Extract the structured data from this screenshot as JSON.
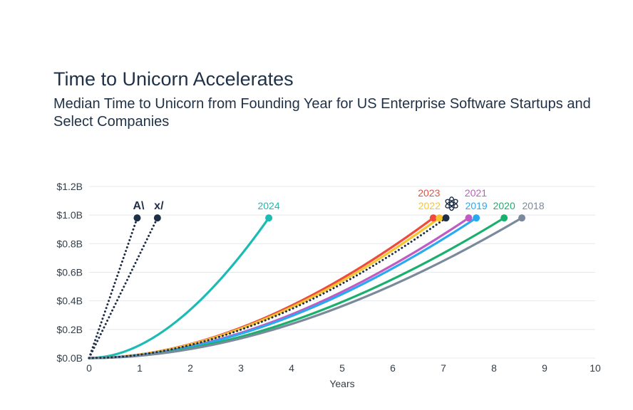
{
  "title": "Time to Unicorn Accelerates",
  "subtitle": "Median Time to Unicorn from Founding Year for US Enterprise Software Startups and Select Companies",
  "chart_data": {
    "type": "line",
    "title": "Time to Unicorn Accelerates",
    "subtitle": "Median Time to Unicorn from Founding Year for US Enterprise Software Startups and Select Companies",
    "xlabel": "Years",
    "ylabel": "",
    "xlim": [
      0,
      10
    ],
    "ylim": [
      0,
      1.2
    ],
    "xticks": [
      "0",
      "1",
      "2",
      "3",
      "4",
      "5",
      "6",
      "7",
      "8",
      "9",
      "10"
    ],
    "yticks": [
      "$0.0B",
      "$0.2B",
      "$0.4B",
      "$0.6B",
      "$0.8B",
      "$1.0B",
      "$1.2B"
    ],
    "grid": "horizontal",
    "series": [
      {
        "name": "Anthropic",
        "label": "A\\",
        "kind": "company",
        "end_year": 0.95,
        "end_value": 0.98,
        "color": "#1f2f47",
        "style": "dotted",
        "curve": "concave"
      },
      {
        "name": "xAI",
        "label": "x/",
        "kind": "company",
        "end_year": 1.35,
        "end_value": 0.98,
        "color": "#1f2f47",
        "style": "dotted",
        "curve": "concave"
      },
      {
        "name": "2024",
        "label": "2024",
        "kind": "cohort",
        "end_year": 3.55,
        "end_value": 0.98,
        "color": "#1dbbb4",
        "style": "solid",
        "curve": "convex"
      },
      {
        "name": "2023",
        "label": "2023",
        "kind": "cohort",
        "end_year": 6.8,
        "end_value": 0.98,
        "color": "#f04b3a",
        "style": "solid",
        "curve": "convex"
      },
      {
        "name": "2022",
        "label": "2022",
        "kind": "cohort",
        "end_year": 6.92,
        "end_value": 0.98,
        "color": "#f6c531",
        "style": "solid",
        "curve": "convex"
      },
      {
        "name": "OpenAI",
        "label": "",
        "kind": "company",
        "end_year": 7.05,
        "end_value": 0.98,
        "color": "#1f2f47",
        "style": "dotted",
        "curve": "convex"
      },
      {
        "name": "2021",
        "label": "2021",
        "kind": "cohort",
        "end_year": 7.5,
        "end_value": 0.98,
        "color": "#c05bc3",
        "style": "solid",
        "curve": "convex"
      },
      {
        "name": "2019",
        "label": "2019",
        "kind": "cohort",
        "end_year": 7.65,
        "end_value": 0.98,
        "color": "#29a9f0",
        "style": "solid",
        "curve": "convex"
      },
      {
        "name": "2020",
        "label": "2020",
        "kind": "cohort",
        "end_year": 8.2,
        "end_value": 0.98,
        "color": "#19b06d",
        "style": "solid",
        "curve": "convex"
      },
      {
        "name": "2018",
        "label": "2018",
        "kind": "cohort",
        "end_year": 8.55,
        "end_value": 0.98,
        "color": "#7a8a9c",
        "style": "solid",
        "curve": "convex"
      }
    ]
  }
}
